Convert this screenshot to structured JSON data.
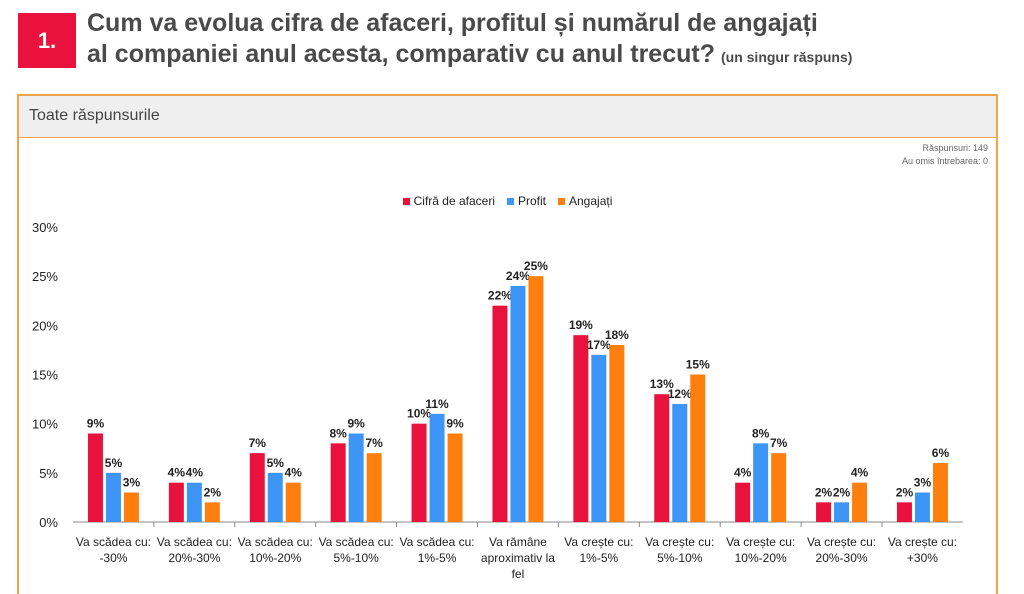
{
  "header": {
    "number": "1.",
    "title_line1": "Cum va evolua cifra de afaceri, profitul și numărul de angajați",
    "title_line2": "al companiei anul acesta, comparativ cu anul trecut?",
    "title_note": "(un singur răspuns)"
  },
  "panel": {
    "title": "Toate răspunsurile",
    "responses": "Răspunsuri: 149",
    "skipped": "Au omis întrebarea: 0"
  },
  "colors": {
    "accent": "#e8123c",
    "series": [
      "#e8123c",
      "#3d96f5",
      "#ff7f0e"
    ]
  },
  "chart_data": {
    "type": "bar",
    "categories": [
      [
        "Va scădea cu:",
        "-30%"
      ],
      [
        "Va scădea cu:",
        "20%-30%"
      ],
      [
        "Va scădea cu:",
        "10%-20%"
      ],
      [
        "Va scădea cu:",
        "5%-10%"
      ],
      [
        "Va scădea cu:",
        "1%-5%"
      ],
      [
        "Va rămâne",
        "aproximativ la",
        "fel"
      ],
      [
        "Va crește cu:",
        "1%-5%"
      ],
      [
        "Va crește cu:",
        "5%-10%"
      ],
      [
        "Va crește cu:",
        "10%-20%"
      ],
      [
        "Va crește cu:",
        "20%-30%"
      ],
      [
        "Va crește cu:",
        "+30%"
      ]
    ],
    "series": [
      {
        "name": "Cifră de afaceri",
        "values": [
          9,
          4,
          7,
          8,
          10,
          22,
          19,
          13,
          4,
          2,
          2
        ]
      },
      {
        "name": "Profit",
        "values": [
          5,
          4,
          5,
          9,
          11,
          24,
          17,
          12,
          8,
          2,
          3
        ]
      },
      {
        "name": "Angajați",
        "values": [
          3,
          2,
          4,
          7,
          9,
          25,
          18,
          15,
          7,
          4,
          6
        ]
      }
    ],
    "value_suffix": "%",
    "yticks": [
      "0%",
      "5%",
      "10%",
      "15%",
      "20%",
      "25%",
      "30%"
    ],
    "ylim": [
      0,
      30
    ],
    "grid": false,
    "legend": "top-center"
  }
}
